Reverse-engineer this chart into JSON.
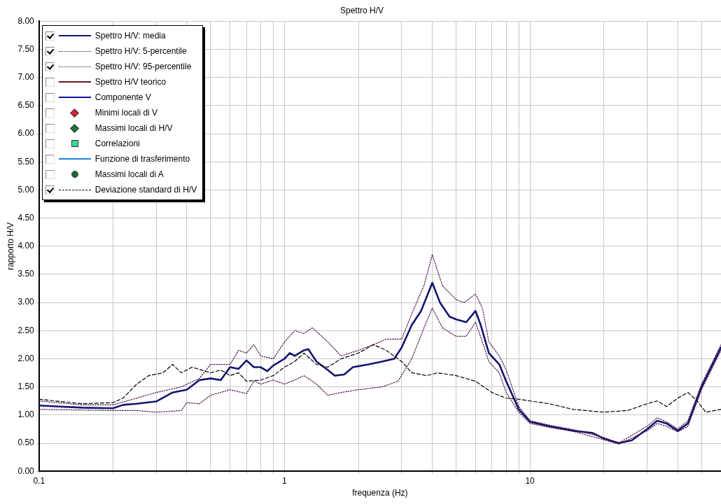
{
  "chart_data": {
    "type": "line",
    "title": "Spettro H/V",
    "xlabel": "frequenza (Hz)",
    "ylabel": "rapporto H/V",
    "log": "x",
    "grid": true,
    "legend": "top left",
    "xlim": [
      0.1,
      60
    ],
    "xticks": [
      0.1,
      {
        "value": 0.2,
        "label": null
      },
      {
        "value": 0.3,
        "label": null
      },
      {
        "value": 0.4,
        "label": null
      },
      {
        "value": 0.5,
        "label": null
      },
      {
        "value": 0.6,
        "label": null
      },
      {
        "value": 0.7,
        "label": null
      },
      {
        "value": 0.8,
        "label": null
      },
      {
        "value": 0.9,
        "label": null
      },
      1,
      {
        "value": 2,
        "label": null
      },
      {
        "value": 3,
        "label": null
      },
      {
        "value": 4,
        "label": null
      },
      {
        "value": 5,
        "label": null
      },
      {
        "value": 6,
        "label": null
      },
      {
        "value": 7,
        "label": null
      },
      {
        "value": 8,
        "label": null
      },
      {
        "value": 9,
        "label": null
      },
      10,
      {
        "value": 20,
        "label": null
      },
      {
        "value": 30,
        "label": null
      },
      {
        "value": 40,
        "label": null
      },
      {
        "value": 50,
        "label": null
      }
    ],
    "ylim": [
      0,
      8
    ],
    "yticks": [
      {
        "value": 0,
        "label": "0.00"
      },
      {
        "value": 0.5,
        "label": "0.50"
      },
      {
        "value": 1,
        "label": "1.00"
      },
      {
        "value": 1.5,
        "label": "1.50"
      },
      {
        "value": 2,
        "label": "2.00"
      },
      {
        "value": 2.5,
        "label": "2.50"
      },
      {
        "value": 3,
        "label": "3.00"
      },
      {
        "value": 3.5,
        "label": "3.50"
      },
      {
        "value": 4,
        "label": "4.00"
      },
      {
        "value": 4.5,
        "label": "4.50"
      },
      {
        "value": 5,
        "label": "5.00"
      },
      {
        "value": 5.5,
        "label": "5.50"
      },
      {
        "value": 6,
        "label": "6.00"
      },
      {
        "value": 6.5,
        "label": "6.50"
      },
      {
        "value": 7,
        "label": "7.00"
      },
      {
        "value": 7.5,
        "label": "7.50"
      },
      {
        "value": 8,
        "label": "8.00"
      }
    ],
    "series": [
      {
        "name": "Spettro H/V: media",
        "color": "#14146e",
        "line_style": "solid",
        "x": [
          0.1,
          0.12,
          0.15,
          0.2,
          0.22,
          0.25,
          0.3,
          0.35,
          0.4,
          0.45,
          0.5,
          0.55,
          0.6,
          0.65,
          0.7,
          0.75,
          0.8,
          0.85,
          0.9,
          1.0,
          1.05,
          1.1,
          1.2,
          1.25,
          1.35,
          1.5,
          1.6,
          1.75,
          1.9,
          2.2,
          2.5,
          2.8,
          3.0,
          3.3,
          3.6,
          4.0,
          4.3,
          4.7,
          5.0,
          5.5,
          6.0,
          6.3,
          6.8,
          7.5,
          8.0,
          9,
          10,
          12,
          15,
          18,
          20,
          23,
          26,
          30,
          33,
          36,
          40,
          44,
          50,
          60
        ],
        "values": [
          1.17,
          1.15,
          1.13,
          1.12,
          1.18,
          1.2,
          1.24,
          1.4,
          1.45,
          1.62,
          1.65,
          1.62,
          1.85,
          1.82,
          1.97,
          1.85,
          1.85,
          1.78,
          1.88,
          2.0,
          2.1,
          2.05,
          2.15,
          2.17,
          1.95,
          1.8,
          1.7,
          1.72,
          1.85,
          1.9,
          1.95,
          2.0,
          2.2,
          2.6,
          2.85,
          3.35,
          3.0,
          2.75,
          2.7,
          2.65,
          2.85,
          2.6,
          2.1,
          1.9,
          1.6,
          1.1,
          0.88,
          0.8,
          0.72,
          0.68,
          0.58,
          0.5,
          0.55,
          0.75,
          0.9,
          0.85,
          0.72,
          0.85,
          1.5,
          2.2
        ]
      },
      {
        "name": "Spettro H/V: 5-percentile",
        "color": "#4b1046",
        "line_style": "dotted",
        "x": [
          0.1,
          0.2,
          0.25,
          0.3,
          0.38,
          0.4,
          0.45,
          0.5,
          0.6,
          0.7,
          0.75,
          0.8,
          0.9,
          1.0,
          1.1,
          1.2,
          1.35,
          1.5,
          1.7,
          2.0,
          2.5,
          2.9,
          3.3,
          3.7,
          4.0,
          4.4,
          5.0,
          5.5,
          6.0,
          6.4,
          6.8,
          7.5,
          8.0,
          9,
          10,
          12,
          15,
          20,
          23,
          30,
          33,
          36,
          40,
          44,
          50,
          60
        ],
        "values": [
          1.1,
          1.08,
          1.08,
          1.05,
          1.08,
          1.22,
          1.2,
          1.35,
          1.45,
          1.38,
          1.6,
          1.55,
          1.62,
          1.55,
          1.62,
          1.7,
          1.55,
          1.35,
          1.4,
          1.45,
          1.5,
          1.6,
          2.0,
          2.55,
          2.9,
          2.55,
          2.4,
          2.4,
          2.65,
          2.3,
          1.95,
          1.75,
          1.4,
          1.05,
          0.85,
          0.78,
          0.71,
          0.56,
          0.48,
          0.72,
          0.85,
          0.8,
          0.7,
          0.8,
          1.45,
          2.15
        ]
      },
      {
        "name": "Spettro H/V: 95-percentile",
        "color": "#4b1046",
        "line_style": "dotted",
        "x": [
          0.1,
          0.15,
          0.2,
          0.25,
          0.3,
          0.38,
          0.45,
          0.5,
          0.6,
          0.65,
          0.7,
          0.75,
          0.8,
          0.9,
          1.0,
          1.1,
          1.2,
          1.3,
          1.5,
          1.7,
          2.0,
          2.3,
          2.6,
          3.0,
          3.3,
          3.7,
          4.0,
          4.4,
          5.0,
          5.4,
          6.0,
          6.4,
          6.8,
          7.5,
          8.0,
          9,
          10,
          12,
          15,
          20,
          23,
          30,
          33,
          36,
          40,
          44,
          50,
          60
        ],
        "values": [
          1.25,
          1.18,
          1.18,
          1.3,
          1.4,
          1.5,
          1.65,
          1.9,
          1.9,
          2.15,
          2.1,
          2.25,
          2.05,
          2.0,
          2.3,
          2.5,
          2.45,
          2.55,
          2.3,
          2.05,
          2.15,
          2.25,
          2.35,
          2.35,
          2.8,
          3.3,
          3.85,
          3.3,
          3.05,
          3.0,
          3.15,
          2.9,
          2.3,
          2.05,
          1.8,
          1.15,
          0.9,
          0.82,
          0.74,
          0.6,
          0.5,
          0.8,
          0.95,
          0.88,
          0.75,
          0.9,
          1.55,
          2.25
        ]
      },
      {
        "name": "Spettro H/V teorico",
        "color": "#6b1020",
        "line_style": "solid"
      },
      {
        "name": "Componente V",
        "color": "#1010a0",
        "line_style": "solid"
      },
      {
        "name": "Minimi locali di V",
        "color": "#e02030",
        "type": "scatter",
        "marker": "diamond"
      },
      {
        "name": "Massimi locali di H/V",
        "color": "#1a7a3a",
        "type": "scatter",
        "marker": "diamond"
      },
      {
        "name": "Correlazioni",
        "color": "#30e090",
        "type": "scatter",
        "marker": "square"
      },
      {
        "name": "Funzione di trasferimento",
        "color": "#2080e0",
        "line_style": "solid"
      },
      {
        "name": "Massimi locali di A",
        "color": "#1a6a30",
        "type": "scatter",
        "marker": "circle"
      },
      {
        "name": "Deviazione standard di H/V",
        "color": "#000000",
        "line_style": "dashed",
        "x": [
          0.1,
          0.15,
          0.2,
          0.22,
          0.25,
          0.28,
          0.32,
          0.35,
          0.38,
          0.42,
          0.5,
          0.55,
          0.6,
          0.65,
          0.7,
          0.8,
          0.9,
          1.0,
          1.1,
          1.2,
          1.35,
          1.5,
          1.7,
          2.0,
          2.3,
          2.6,
          3.0,
          3.3,
          3.8,
          4.2,
          5.0,
          6.0,
          7.0,
          8,
          9,
          10,
          12,
          15,
          20,
          25,
          30,
          33,
          36,
          40,
          44,
          48,
          52,
          60
        ],
        "values": [
          1.28,
          1.2,
          1.22,
          1.3,
          1.55,
          1.7,
          1.75,
          1.9,
          1.75,
          1.85,
          1.75,
          1.8,
          1.7,
          1.75,
          1.6,
          1.62,
          1.7,
          1.85,
          1.95,
          2.1,
          1.9,
          1.85,
          2.0,
          2.1,
          2.25,
          2.15,
          1.95,
          1.75,
          1.7,
          1.75,
          1.7,
          1.6,
          1.4,
          1.3,
          1.28,
          1.25,
          1.2,
          1.1,
          1.05,
          1.08,
          1.2,
          1.25,
          1.15,
          1.3,
          1.4,
          1.25,
          1.05,
          1.1
        ]
      }
    ]
  }
}
